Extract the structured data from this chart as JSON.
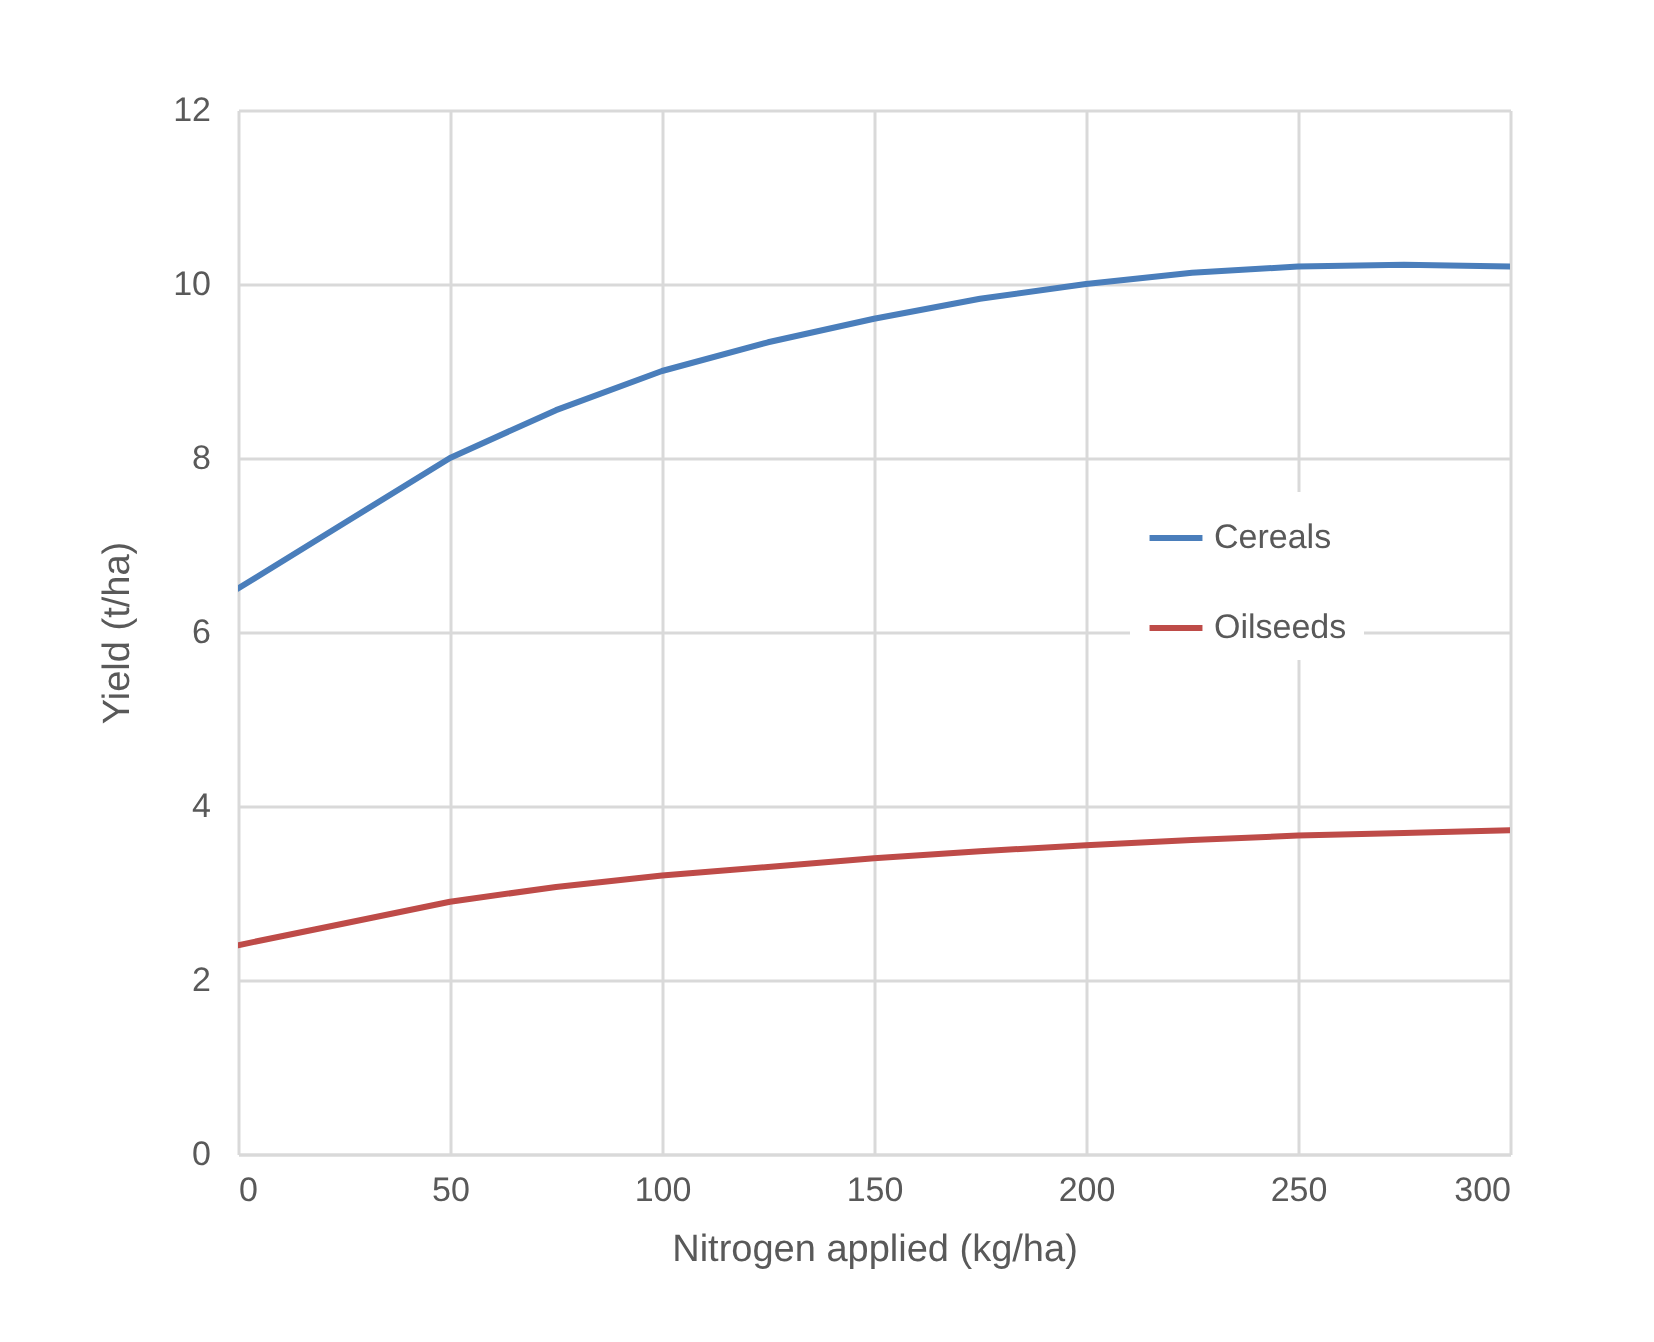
{
  "chart_data": {
    "type": "line",
    "xlabel": "Nitrogen applied (kg/ha)",
    "ylabel": "Yield (t/ha)",
    "x": [
      0,
      25,
      50,
      75,
      100,
      125,
      150,
      175,
      200,
      225,
      250,
      275,
      300
    ],
    "series": [
      {
        "name": "Cereals",
        "color": "#4a7ebb",
        "values": [
          6.5,
          7.25,
          8.0,
          8.55,
          9.0,
          9.33,
          9.6,
          9.83,
          10.0,
          10.13,
          10.2,
          10.22,
          10.2
        ]
      },
      {
        "name": "Oilseeds",
        "color": "#be4b48",
        "values": [
          2.4,
          2.65,
          2.9,
          3.07,
          3.2,
          3.3,
          3.4,
          3.48,
          3.55,
          3.61,
          3.66,
          3.69,
          3.72
        ]
      }
    ],
    "xlim": [
      0,
      300
    ],
    "xticks": [
      0,
      50,
      100,
      150,
      200,
      250,
      300
    ],
    "ylim": [
      0,
      12
    ],
    "yticks": [
      0,
      2,
      4,
      6,
      8,
      10,
      12
    ],
    "grid": true,
    "legend": "right",
    "marker": "none",
    "line_style": "solid"
  }
}
